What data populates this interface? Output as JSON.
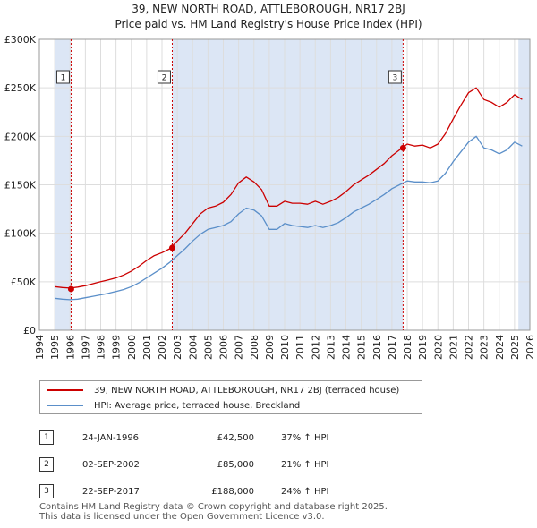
{
  "title_line1": "39, NEW NORTH ROAD, ATTLEBOROUGH, NR17 2BJ",
  "title_line2": "Price paid vs. HM Land Registry's House Price Index (HPI)",
  "legend": {
    "property_label": "39, NEW NORTH ROAD, ATTLEBOROUGH, NR17 2BJ (terraced house)",
    "hpi_label": "HPI: Average price, terraced house, Breckland"
  },
  "sales": [
    {
      "num": "1",
      "date": "24-JAN-1996",
      "price": "£42,500",
      "hpi": "37% ↑ HPI"
    },
    {
      "num": "2",
      "date": "02-SEP-2002",
      "price": "£85,000",
      "hpi": "21% ↑ HPI"
    },
    {
      "num": "3",
      "date": "22-SEP-2017",
      "price": "£188,000",
      "hpi": "24% ↑ HPI"
    }
  ],
  "footer_line1": "Contains HM Land Registry data © Crown copyright and database right 2025.",
  "footer_line2": "This data is licensed under the Open Government Licence v3.0.",
  "colors": {
    "property": "#cc0000",
    "hpi": "#5b8fc9",
    "shade": "#dce6f5",
    "grid": "#dddddd",
    "vline": "#cc0000"
  },
  "chart_data": {
    "type": "line",
    "title": "39, NEW NORTH ROAD, ATTLEBOROUGH, NR17 2BJ — Price paid vs. HM Land Registry's House Price Index (HPI)",
    "xlim": [
      1994,
      2026
    ],
    "ylim": [
      0,
      300000
    ],
    "x_ticks": [
      1994,
      1995,
      1996,
      1997,
      1998,
      1999,
      2000,
      2001,
      2002,
      2003,
      2004,
      2005,
      2006,
      2007,
      2008,
      2009,
      2010,
      2011,
      2012,
      2013,
      2014,
      2015,
      2016,
      2017,
      2018,
      2019,
      2020,
      2021,
      2022,
      2023,
      2024,
      2025,
      2026
    ],
    "y_ticks": [
      {
        "value": 0,
        "label": "£0"
      },
      {
        "value": 50000,
        "label": "£50K"
      },
      {
        "value": 100000,
        "label": "£100K"
      },
      {
        "value": 150000,
        "label": "£150K"
      },
      {
        "value": 200000,
        "label": "£200K"
      },
      {
        "value": 250000,
        "label": "£250K"
      },
      {
        "value": 300000,
        "label": "£300K"
      }
    ],
    "shaded_ranges": [
      [
        1995.0,
        1996.07
      ],
      [
        2002.67,
        2017.73
      ],
      [
        2025.25,
        2026
      ]
    ],
    "sale_markers": [
      {
        "label": "1",
        "x": 1996.07,
        "y": 42500
      },
      {
        "label": "2",
        "x": 2002.67,
        "y": 85000
      },
      {
        "label": "3",
        "x": 2017.73,
        "y": 188000
      }
    ],
    "series": [
      {
        "name": "39, NEW NORTH ROAD, ATTLEBOROUGH, NR17 2BJ (terraced house)",
        "x": [
          1995.0,
          1995.5,
          1996.0,
          1996.5,
          1997.0,
          1997.5,
          1998.0,
          1998.5,
          1999.0,
          1999.5,
          2000.0,
          2000.5,
          2001.0,
          2001.5,
          2002.0,
          2002.5,
          2003.0,
          2003.5,
          2004.0,
          2004.5,
          2005.0,
          2005.5,
          2006.0,
          2006.5,
          2007.0,
          2007.5,
          2008.0,
          2008.5,
          2009.0,
          2009.5,
          2010.0,
          2010.5,
          2011.0,
          2011.5,
          2012.0,
          2012.5,
          2013.0,
          2013.5,
          2014.0,
          2014.5,
          2015.0,
          2015.5,
          2016.0,
          2016.5,
          2017.0,
          2017.5,
          2018.0,
          2018.5,
          2019.0,
          2019.5,
          2020.0,
          2020.5,
          2021.0,
          2021.5,
          2022.0,
          2022.5,
          2023.0,
          2023.5,
          2024.0,
          2024.5,
          2025.0,
          2025.5
        ],
        "values": [
          45000,
          44000,
          43500,
          44500,
          46000,
          48000,
          50000,
          52000,
          54000,
          57000,
          61000,
          66000,
          72000,
          77000,
          80000,
          84000,
          92000,
          100000,
          110000,
          120000,
          126000,
          128000,
          132000,
          140000,
          152000,
          158000,
          153000,
          145000,
          128000,
          128000,
          133000,
          131000,
          131000,
          130000,
          133000,
          130000,
          133000,
          137000,
          143000,
          150000,
          155000,
          160000,
          166000,
          172000,
          180000,
          186000,
          192000,
          190000,
          191000,
          188000,
          192000,
          203000,
          218000,
          232000,
          245000,
          250000,
          238000,
          235000,
          230000,
          235000,
          243000,
          238000
        ]
      },
      {
        "name": "HPI: Average price, terraced house, Breckland",
        "x": [
          1995.0,
          1995.5,
          1996.0,
          1996.5,
          1997.0,
          1997.5,
          1998.0,
          1998.5,
          1999.0,
          1999.5,
          2000.0,
          2000.5,
          2001.0,
          2001.5,
          2002.0,
          2002.5,
          2003.0,
          2003.5,
          2004.0,
          2004.5,
          2005.0,
          2005.5,
          2006.0,
          2006.5,
          2007.0,
          2007.5,
          2008.0,
          2008.5,
          2009.0,
          2009.5,
          2010.0,
          2010.5,
          2011.0,
          2011.5,
          2012.0,
          2012.5,
          2013.0,
          2013.5,
          2014.0,
          2014.5,
          2015.0,
          2015.5,
          2016.0,
          2016.5,
          2017.0,
          2017.5,
          2018.0,
          2018.5,
          2019.0,
          2019.5,
          2020.0,
          2020.5,
          2021.0,
          2021.5,
          2022.0,
          2022.5,
          2023.0,
          2023.5,
          2024.0,
          2024.5,
          2025.0,
          2025.5
        ],
        "values": [
          33000,
          32000,
          31500,
          32000,
          33500,
          35000,
          36500,
          38000,
          40000,
          42000,
          45000,
          49000,
          54000,
          59000,
          64000,
          70000,
          77000,
          84000,
          92000,
          99000,
          104000,
          106000,
          108000,
          112000,
          120000,
          126000,
          124000,
          118000,
          104000,
          104000,
          110000,
          108000,
          107000,
          106000,
          108000,
          106000,
          108000,
          111000,
          116000,
          122000,
          126000,
          130000,
          135000,
          140000,
          146000,
          150000,
          154000,
          153000,
          153000,
          152000,
          154000,
          162000,
          174000,
          184000,
          194000,
          200000,
          188000,
          186000,
          182000,
          186000,
          194000,
          190000
        ]
      }
    ]
  }
}
